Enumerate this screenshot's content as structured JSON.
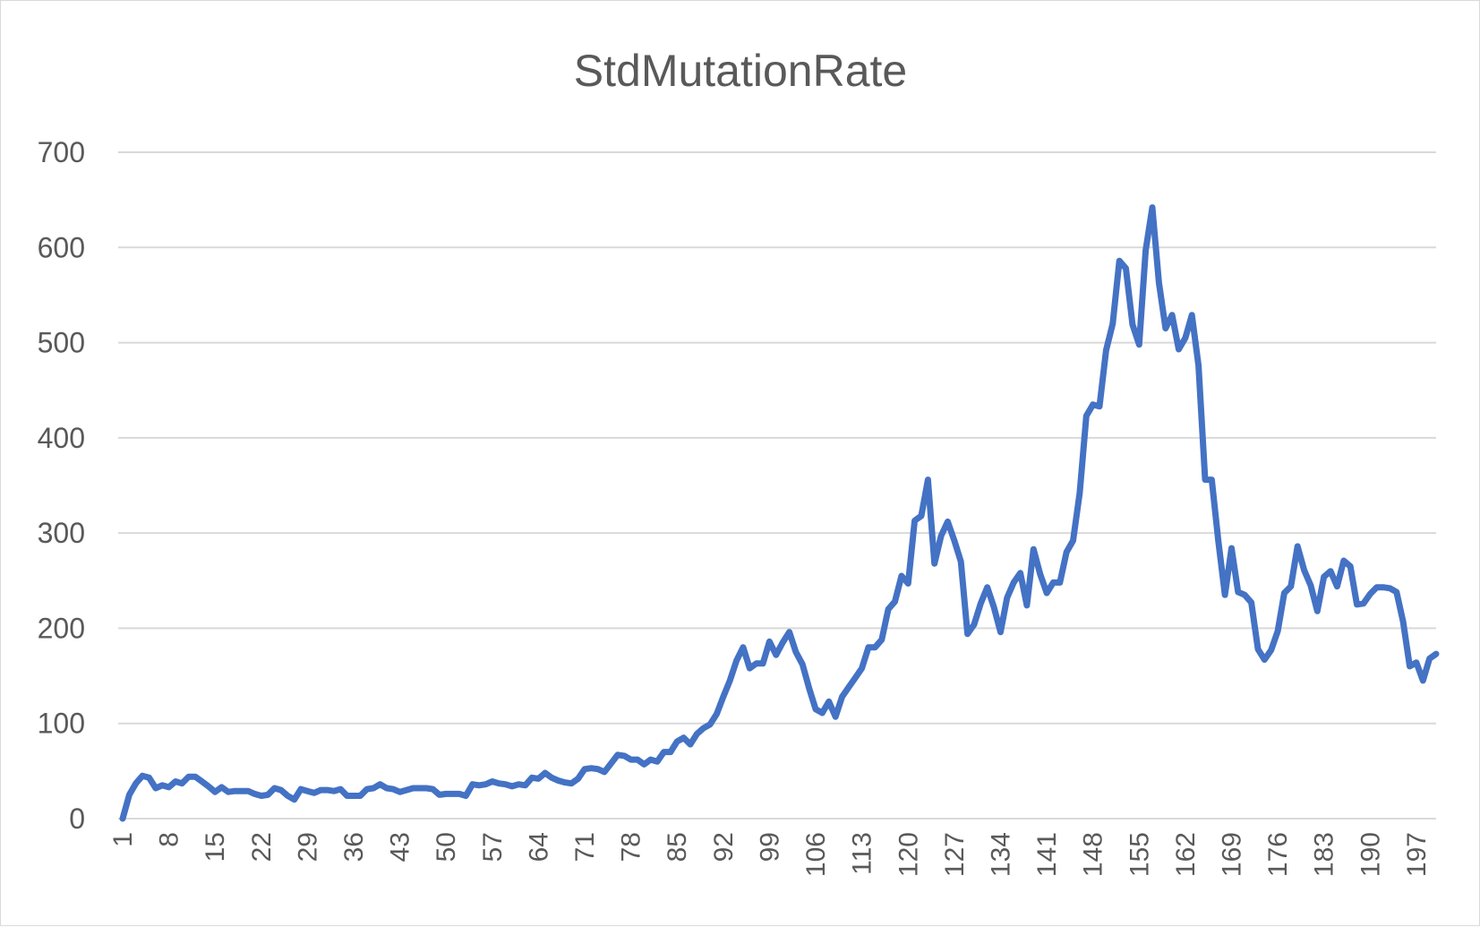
{
  "chart_data": {
    "type": "line",
    "title": "StdMutationRate",
    "xlabel": "",
    "ylabel": "",
    "ylim": [
      0,
      700
    ],
    "yticks": [
      0,
      100,
      200,
      300,
      400,
      500,
      600,
      700
    ],
    "xlim": [
      1,
      200
    ],
    "xticks": [
      1,
      8,
      15,
      22,
      29,
      36,
      43,
      50,
      57,
      64,
      71,
      78,
      85,
      92,
      99,
      106,
      113,
      120,
      127,
      134,
      141,
      148,
      155,
      162,
      169,
      176,
      183,
      190,
      197
    ],
    "grid": true,
    "legend": "none",
    "series": [
      {
        "color": "#4472C4",
        "x": [
          1,
          2,
          3,
          4,
          5,
          6,
          7,
          8,
          9,
          10,
          11,
          12,
          13,
          14,
          15,
          16,
          17,
          18,
          19,
          20,
          21,
          22,
          23,
          24,
          25,
          26,
          27,
          28,
          29,
          30,
          31,
          32,
          33,
          34,
          35,
          36,
          37,
          38,
          39,
          40,
          41,
          42,
          43,
          44,
          45,
          46,
          47,
          48,
          49,
          50,
          51,
          52,
          53,
          54,
          55,
          56,
          57,
          58,
          59,
          60,
          61,
          62,
          63,
          64,
          65,
          66,
          67,
          68,
          69,
          70,
          71,
          72,
          73,
          74,
          75,
          76,
          77,
          78,
          79,
          80,
          81,
          82,
          83,
          84,
          85,
          86,
          87,
          88,
          89,
          90,
          91,
          92,
          93,
          94,
          95,
          96,
          97,
          98,
          99,
          100,
          101,
          102,
          103,
          104,
          105,
          106,
          107,
          108,
          109,
          110,
          111,
          112,
          113,
          114,
          115,
          116,
          117,
          118,
          119,
          120,
          121,
          122,
          123,
          124,
          125,
          126,
          127,
          128,
          129,
          130,
          131,
          132,
          133,
          134,
          135,
          136,
          137,
          138,
          139,
          140,
          141,
          142,
          143,
          144,
          145,
          146,
          147,
          148,
          149,
          150,
          151,
          152,
          153,
          154,
          155,
          156,
          157,
          158,
          159,
          160,
          161,
          162,
          163,
          164,
          165,
          166,
          167,
          168,
          169,
          170,
          171,
          172,
          173,
          174,
          175,
          176,
          177,
          178,
          179,
          180,
          181,
          182,
          183,
          184,
          185,
          186,
          187,
          188,
          189,
          190,
          191,
          192,
          193,
          194,
          195,
          196,
          197,
          198,
          199,
          200
        ],
        "values": [
          0,
          25,
          37,
          45,
          43,
          32,
          35,
          33,
          39,
          37,
          44,
          44,
          39,
          34,
          28,
          33,
          28,
          29,
          29,
          29,
          26,
          24,
          25,
          32,
          30,
          24,
          20,
          31,
          29,
          27,
          30,
          30,
          29,
          31,
          24,
          24,
          24,
          31,
          32,
          36,
          32,
          31,
          28,
          30,
          32,
          32,
          32,
          31,
          25,
          26,
          26,
          26,
          24,
          36,
          35,
          36,
          39,
          37,
          36,
          34,
          36,
          35,
          43,
          42,
          48,
          43,
          40,
          38,
          37,
          42,
          52,
          53,
          52,
          49,
          58,
          67,
          66,
          62,
          62,
          57,
          62,
          60,
          70,
          70,
          81,
          85,
          78,
          89,
          95,
          99,
          110,
          128,
          145,
          166,
          180,
          158,
          163,
          163,
          186,
          172,
          185,
          196,
          175,
          162,
          137,
          115,
          111,
          123,
          107,
          128,
          138,
          148,
          158,
          180,
          180,
          188,
          220,
          228,
          255,
          247,
          313,
          318,
          356,
          268,
          297,
          312,
          292,
          270,
          194,
          204,
          226,
          243,
          222,
          196,
          232,
          248,
          258,
          224,
          283,
          257,
          237,
          248,
          248,
          280,
          292,
          342,
          423,
          435,
          433,
          492,
          520,
          586,
          578,
          519,
          498,
          597,
          642,
          563,
          515,
          529,
          493,
          505,
          529,
          476,
          356,
          356,
          292,
          235,
          284,
          238,
          235,
          227,
          178,
          167,
          177,
          197,
          237,
          244,
          286,
          261,
          245,
          218,
          254,
          260,
          244,
          271,
          265,
          225,
          226,
          236,
          243,
          243,
          242,
          238,
          207,
          160,
          164,
          145,
          168,
          173
        ]
      }
    ]
  }
}
